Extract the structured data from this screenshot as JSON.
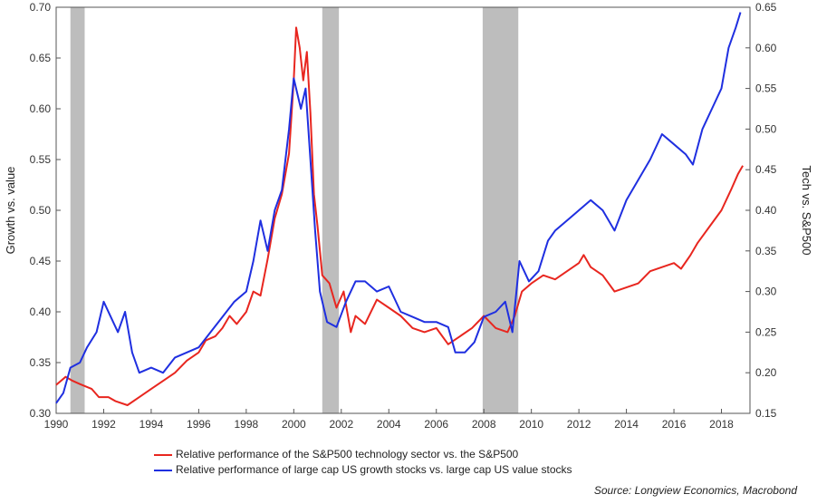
{
  "chart_data": {
    "type": "line",
    "left_axis": {
      "label": "Growth vs. value",
      "ylim": [
        0.3,
        0.7
      ],
      "ticks": [
        "0.30",
        "0.35",
        "0.40",
        "0.45",
        "0.50",
        "0.55",
        "0.60",
        "0.65",
        "0.70"
      ]
    },
    "right_axis": {
      "label": "Tech vs. S&P500",
      "ylim": [
        0.15,
        0.65
      ],
      "ticks": [
        "0.15",
        "0.20",
        "0.25",
        "0.30",
        "0.35",
        "0.40",
        "0.45",
        "0.50",
        "0.55",
        "0.60",
        "0.65"
      ]
    },
    "x_ticks": [
      "1990",
      "1992",
      "1994",
      "1996",
      "1998",
      "2000",
      "2002",
      "2004",
      "2006",
      "2008",
      "2010",
      "2012",
      "2014",
      "2016",
      "2018"
    ],
    "xlim": [
      1990,
      2019.2
    ],
    "recessions": [
      [
        1990.6,
        1991.2
      ],
      [
        2001.2,
        2001.9
      ],
      [
        2007.95,
        2009.45
      ]
    ],
    "grid": false,
    "series": [
      {
        "name": "Relative performance of the S&P500 technology sector vs. the S&P500",
        "axis": "right",
        "color": "#e8261f",
        "points": [
          [
            1990.0,
            0.185
          ],
          [
            1990.4,
            0.195
          ],
          [
            1990.7,
            0.19
          ],
          [
            1991.0,
            0.186
          ],
          [
            1991.5,
            0.18
          ],
          [
            1991.8,
            0.17
          ],
          [
            1992.2,
            0.17
          ],
          [
            1992.5,
            0.165
          ],
          [
            1993.0,
            0.16
          ],
          [
            1993.5,
            0.17
          ],
          [
            1994.0,
            0.18
          ],
          [
            1994.5,
            0.19
          ],
          [
            1995.0,
            0.2
          ],
          [
            1995.5,
            0.215
          ],
          [
            1996.0,
            0.225
          ],
          [
            1996.3,
            0.24
          ],
          [
            1996.7,
            0.245
          ],
          [
            1997.0,
            0.255
          ],
          [
            1997.3,
            0.27
          ],
          [
            1997.6,
            0.26
          ],
          [
            1998.0,
            0.275
          ],
          [
            1998.3,
            0.3
          ],
          [
            1998.6,
            0.295
          ],
          [
            1998.9,
            0.34
          ],
          [
            1999.2,
            0.39
          ],
          [
            1999.5,
            0.42
          ],
          [
            1999.8,
            0.47
          ],
          [
            2000.0,
            0.56
          ],
          [
            2000.1,
            0.625
          ],
          [
            2000.25,
            0.6
          ],
          [
            2000.4,
            0.56
          ],
          [
            2000.55,
            0.595
          ],
          [
            2000.7,
            0.52
          ],
          [
            2000.85,
            0.42
          ],
          [
            2001.0,
            0.38
          ],
          [
            2001.2,
            0.32
          ],
          [
            2001.5,
            0.31
          ],
          [
            2001.8,
            0.28
          ],
          [
            2002.1,
            0.3
          ],
          [
            2002.4,
            0.25
          ],
          [
            2002.6,
            0.27
          ],
          [
            2003.0,
            0.26
          ],
          [
            2003.5,
            0.29
          ],
          [
            2004.0,
            0.28
          ],
          [
            2004.5,
            0.27
          ],
          [
            2005.0,
            0.255
          ],
          [
            2005.5,
            0.25
          ],
          [
            2006.0,
            0.255
          ],
          [
            2006.5,
            0.235
          ],
          [
            2007.0,
            0.245
          ],
          [
            2007.5,
            0.255
          ],
          [
            2008.0,
            0.27
          ],
          [
            2008.5,
            0.255
          ],
          [
            2009.0,
            0.25
          ],
          [
            2009.3,
            0.27
          ],
          [
            2009.6,
            0.3
          ],
          [
            2010.0,
            0.31
          ],
          [
            2010.5,
            0.32
          ],
          [
            2011.0,
            0.315
          ],
          [
            2011.5,
            0.325
          ],
          [
            2012.0,
            0.335
          ],
          [
            2012.2,
            0.345
          ],
          [
            2012.5,
            0.33
          ],
          [
            2013.0,
            0.32
          ],
          [
            2013.5,
            0.3
          ],
          [
            2014.0,
            0.305
          ],
          [
            2014.5,
            0.31
          ],
          [
            2015.0,
            0.325
          ],
          [
            2015.5,
            0.33
          ],
          [
            2016.0,
            0.335
          ],
          [
            2016.3,
            0.328
          ],
          [
            2016.7,
            0.345
          ],
          [
            2017.0,
            0.36
          ],
          [
            2017.5,
            0.38
          ],
          [
            2018.0,
            0.4
          ],
          [
            2018.4,
            0.425
          ],
          [
            2018.7,
            0.445
          ],
          [
            2018.9,
            0.455
          ]
        ]
      },
      {
        "name": "Relative performance of large cap US growth stocks vs. large cap US value stocks",
        "axis": "left",
        "color": "#1f2fe0",
        "points": [
          [
            1990.0,
            0.31
          ],
          [
            1990.3,
            0.32
          ],
          [
            1990.6,
            0.345
          ],
          [
            1991.0,
            0.35
          ],
          [
            1991.3,
            0.365
          ],
          [
            1991.7,
            0.38
          ],
          [
            1992.0,
            0.41
          ],
          [
            1992.3,
            0.395
          ],
          [
            1992.6,
            0.38
          ],
          [
            1992.9,
            0.4
          ],
          [
            1993.2,
            0.36
          ],
          [
            1993.5,
            0.34
          ],
          [
            1994.0,
            0.345
          ],
          [
            1994.5,
            0.34
          ],
          [
            1995.0,
            0.355
          ],
          [
            1995.5,
            0.36
          ],
          [
            1996.0,
            0.365
          ],
          [
            1996.5,
            0.38
          ],
          [
            1997.0,
            0.395
          ],
          [
            1997.5,
            0.41
          ],
          [
            1998.0,
            0.42
          ],
          [
            1998.3,
            0.45
          ],
          [
            1998.6,
            0.49
          ],
          [
            1998.9,
            0.46
          ],
          [
            1999.2,
            0.5
          ],
          [
            1999.5,
            0.52
          ],
          [
            1999.8,
            0.58
          ],
          [
            2000.0,
            0.63
          ],
          [
            2000.3,
            0.6
          ],
          [
            2000.5,
            0.62
          ],
          [
            2000.7,
            0.55
          ],
          [
            2000.9,
            0.48
          ],
          [
            2001.1,
            0.42
          ],
          [
            2001.4,
            0.39
          ],
          [
            2001.8,
            0.385
          ],
          [
            2002.2,
            0.41
          ],
          [
            2002.6,
            0.43
          ],
          [
            2003.0,
            0.43
          ],
          [
            2003.5,
            0.42
          ],
          [
            2004.0,
            0.425
          ],
          [
            2004.5,
            0.4
          ],
          [
            2005.0,
            0.395
          ],
          [
            2005.5,
            0.39
          ],
          [
            2006.0,
            0.39
          ],
          [
            2006.5,
            0.385
          ],
          [
            2006.8,
            0.36
          ],
          [
            2007.2,
            0.36
          ],
          [
            2007.6,
            0.37
          ],
          [
            2008.0,
            0.395
          ],
          [
            2008.5,
            0.4
          ],
          [
            2008.9,
            0.41
          ],
          [
            2009.2,
            0.38
          ],
          [
            2009.5,
            0.45
          ],
          [
            2009.9,
            0.43
          ],
          [
            2010.3,
            0.44
          ],
          [
            2010.7,
            0.47
          ],
          [
            2011.0,
            0.48
          ],
          [
            2011.5,
            0.49
          ],
          [
            2012.0,
            0.5
          ],
          [
            2012.5,
            0.51
          ],
          [
            2013.0,
            0.5
          ],
          [
            2013.5,
            0.48
          ],
          [
            2014.0,
            0.51
          ],
          [
            2014.5,
            0.53
          ],
          [
            2015.0,
            0.55
          ],
          [
            2015.5,
            0.575
          ],
          [
            2016.0,
            0.565
          ],
          [
            2016.5,
            0.555
          ],
          [
            2016.8,
            0.545
          ],
          [
            2017.2,
            0.58
          ],
          [
            2017.6,
            0.6
          ],
          [
            2018.0,
            0.62
          ],
          [
            2018.3,
            0.66
          ],
          [
            2018.6,
            0.68
          ],
          [
            2018.8,
            0.695
          ]
        ]
      }
    ],
    "legend": [
      {
        "label": "Relative performance of the S&P500 technology sector vs. the S&P500",
        "color": "#e8261f"
      },
      {
        "label": "Relative performance of large cap US growth stocks vs. large cap US value stocks",
        "color": "#1f2fe0"
      }
    ],
    "legend_placement": "bottom",
    "source": "Source: Longview Economics, Macrobond"
  }
}
